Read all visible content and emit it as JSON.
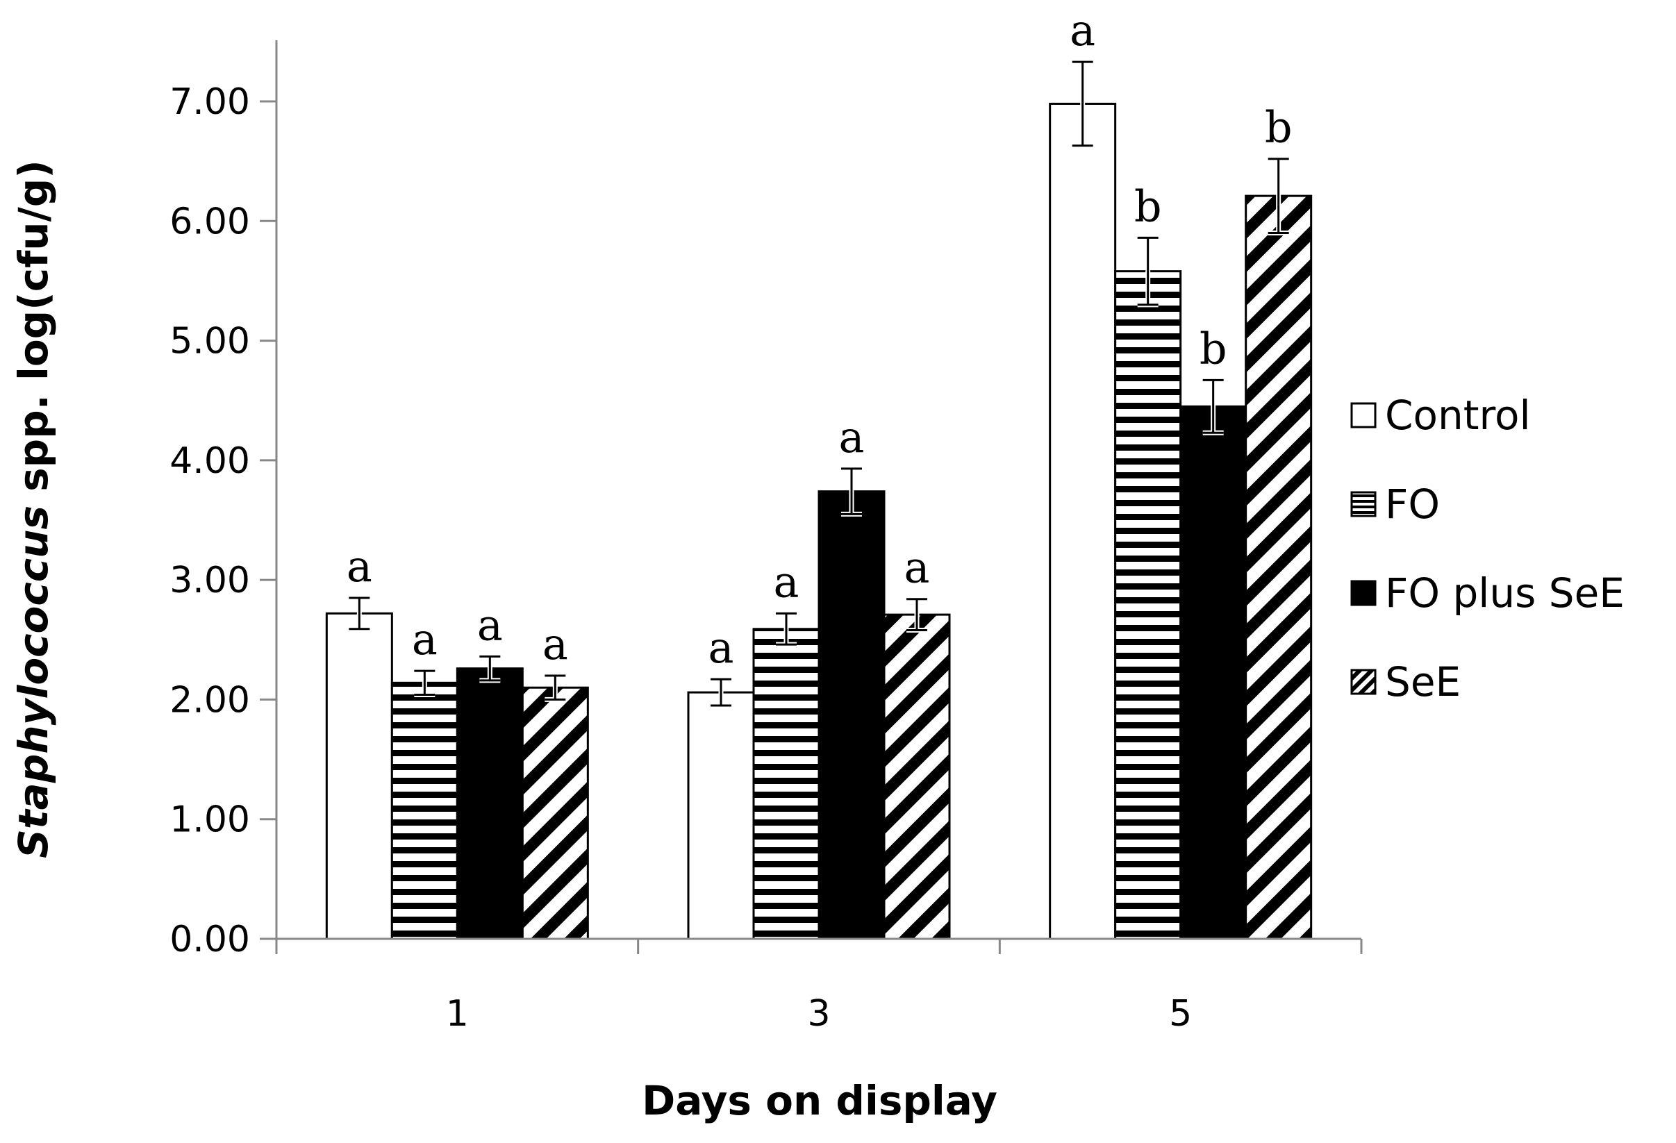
{
  "chart_data": {
    "type": "bar",
    "xlabel": "Days on display",
    "ylabel_italic": "Staphylococcus",
    "ylabel_rest": " spp. log(cfu/g)",
    "categories": [
      "1",
      "3",
      "5"
    ],
    "ylim": [
      0,
      7
    ],
    "yticks": [
      "0.00",
      "1.00",
      "2.00",
      "3.00",
      "4.00",
      "5.00",
      "6.00",
      "7.00"
    ],
    "grid": false,
    "legend_position": "right",
    "series": [
      {
        "name": "Control",
        "pattern": "open",
        "values": [
          2.72,
          2.06,
          6.98
        ],
        "errors": [
          0.13,
          0.11,
          0.35
        ],
        "letters": [
          "a",
          "a",
          "a"
        ]
      },
      {
        "name": "FO",
        "pattern": "horizontal-stripes",
        "values": [
          2.14,
          2.59,
          5.58
        ],
        "errors": [
          0.1,
          0.13,
          0.28
        ],
        "letters": [
          "a",
          "a",
          "b"
        ]
      },
      {
        "name": "FO plus SeE",
        "pattern": "solid-black",
        "values": [
          2.26,
          3.74,
          4.45
        ],
        "errors": [
          0.1,
          0.19,
          0.22
        ],
        "letters": [
          "a",
          "a",
          "b"
        ]
      },
      {
        "name": "SeE",
        "pattern": "diagonal-stripes",
        "values": [
          2.1,
          2.71,
          6.21
        ],
        "errors": [
          0.1,
          0.13,
          0.31
        ],
        "letters": [
          "a",
          "a",
          "b"
        ]
      }
    ]
  }
}
